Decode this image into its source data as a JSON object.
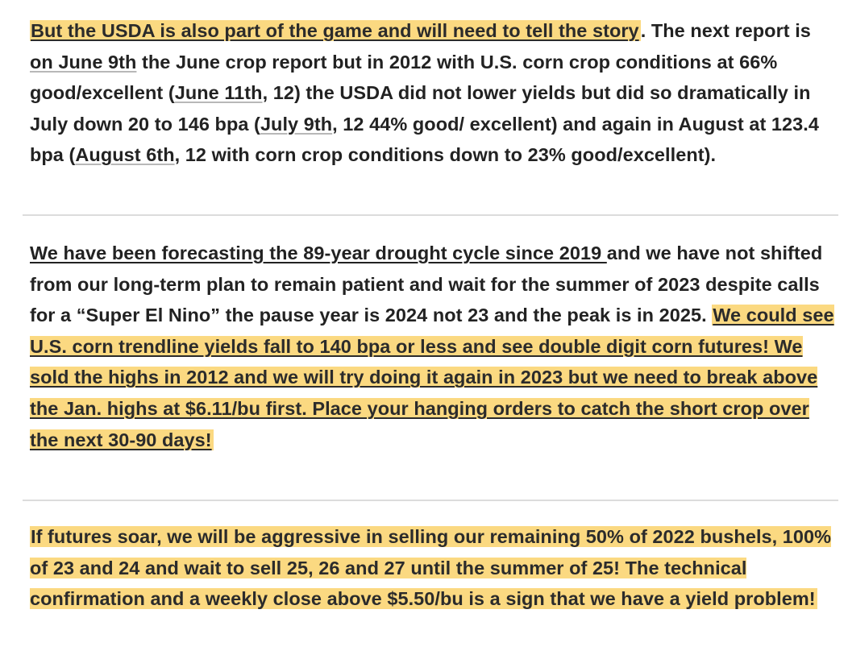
{
  "paragraphs": {
    "p1": {
      "highlight": "But the USDA is also part of the game and will need to tell the story",
      "t1": ". The next report is ",
      "link_june9": "on June 9th",
      "t2": " the June crop report but in 2012 with U.S. corn crop conditions at 66% good/excellent (",
      "link_june11": "June 11th",
      "t3": ", 12) the USDA did not lower yields but did so dramatically in July down 20 to 146 bpa (",
      "link_july9": "July 9th",
      "t4": ", 12 44% good/ excellent) and again in August at 123.4 bpa (",
      "link_aug6": "August 6th",
      "t5": ", 12 with corn crop conditions down to 23% good/excellent)."
    },
    "p2": {
      "underlined": "We have been forecasting the 89-year drought cycle since 2019 ",
      "t1": "and we have not shifted from our long-term plan to remain patient and wait for the summer of 2023 despite calls for a “Super El Nino” the pause year is 2024 not 23 and the peak is in 2025. ",
      "highlight": "We could see U.S. corn trendline yields fall to 140 bpa or less and see double digit corn futures! We sold the highs in 2012 and we will try doing it again in 2023 but we need to break above the Jan. highs at $6.11/bu first. Place your hanging orders to catch the short crop over the next 30-90 days! "
    },
    "p3": {
      "highlight": "If futures soar, we will be aggressive in selling our remaining 50% of 2022 bushels, 100% of 23 and 24 and wait to sell 25, 26 and 27 until the summer of 25! The technical confirmation and a weekly close above $5.50/bu is a sign that we have a yield problem! "
    }
  },
  "colors": {
    "highlight": "#fbd981",
    "text": "#222222",
    "divider": "#dcdcdc"
  }
}
